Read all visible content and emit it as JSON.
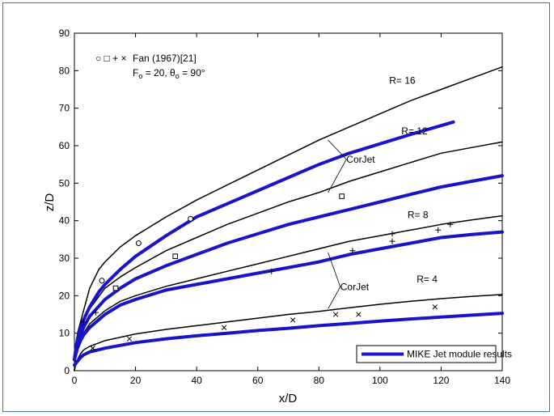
{
  "chart_data": {
    "type": "line",
    "title": "",
    "xlabel": "x/D",
    "ylabel": "z/D",
    "xlim": [
      0,
      140
    ],
    "ylim": [
      0,
      90
    ],
    "x_ticks": [
      0,
      20,
      40,
      60,
      80,
      100,
      120,
      140
    ],
    "y_ticks": [
      0,
      10,
      20,
      30,
      40,
      50,
      60,
      70,
      80,
      90
    ],
    "grid": false,
    "colors": {
      "corjet": "#000000",
      "mike": "#1a14c8",
      "markers": "#000000"
    },
    "legend": {
      "placement": "bottom-right",
      "label": "MIKE Jet module results"
    },
    "marker_legend": {
      "symbols": "○ □ + ×",
      "source": "Fan (1967)[21]",
      "params_prefix": "F",
      "params_sub1": "o",
      "params_mid": " = 20, θ",
      "params_sub2": "o",
      "params_suffix": " = 90°"
    },
    "r_labels": [
      {
        "text": "R= 16",
        "x": 103,
        "y": 76.5
      },
      {
        "text": "R= 12",
        "x": 107,
        "y": 63
      },
      {
        "text": "R= 8",
        "x": 109,
        "y": 40.7
      },
      {
        "text": "R= 4",
        "x": 112,
        "y": 23.5
      }
    ],
    "annotations": [
      {
        "text": "CorJet",
        "x": 89,
        "y": 55.5,
        "pointers": [
          [
            83,
            61.5
          ],
          [
            83,
            47.5
          ]
        ]
      },
      {
        "text": "CorJet",
        "x": 87,
        "y": 21.5,
        "pointers": [
          [
            83,
            31.5
          ],
          [
            83,
            16.5
          ]
        ]
      }
    ],
    "series": [
      {
        "group": "corjet",
        "R": 16,
        "points": [
          [
            0,
            0
          ],
          [
            0.5,
            6
          ],
          [
            1,
            10
          ],
          [
            2,
            13
          ],
          [
            3,
            16
          ],
          [
            4,
            19
          ],
          [
            5,
            22
          ],
          [
            8,
            27
          ],
          [
            10,
            29
          ],
          [
            15,
            33
          ],
          [
            20,
            36
          ],
          [
            30,
            41
          ],
          [
            40,
            45.5
          ],
          [
            50,
            49.5
          ],
          [
            60,
            53.5
          ],
          [
            70,
            57.5
          ],
          [
            80,
            61.5
          ],
          [
            90,
            65
          ],
          [
            100,
            68.5
          ],
          [
            110,
            72
          ],
          [
            120,
            75
          ],
          [
            130,
            78
          ],
          [
            140,
            81
          ]
        ]
      },
      {
        "group": "corjet",
        "R": 12,
        "points": [
          [
            0,
            0
          ],
          [
            0.5,
            5
          ],
          [
            1,
            8
          ],
          [
            2,
            11
          ],
          [
            3,
            13
          ],
          [
            5,
            16.5
          ],
          [
            10,
            22
          ],
          [
            15,
            25
          ],
          [
            20,
            27.5
          ],
          [
            30,
            32
          ],
          [
            40,
            35.5
          ],
          [
            50,
            39
          ],
          [
            60,
            42
          ],
          [
            70,
            45
          ],
          [
            80,
            47.5
          ],
          [
            90,
            50.5
          ],
          [
            100,
            53
          ],
          [
            110,
            55.5
          ],
          [
            120,
            58
          ],
          [
            130,
            59.5
          ],
          [
            140,
            61
          ]
        ]
      },
      {
        "group": "corjet",
        "R": 8,
        "points": [
          [
            0,
            0
          ],
          [
            0.5,
            4
          ],
          [
            1,
            6
          ],
          [
            2,
            8.5
          ],
          [
            3,
            10
          ],
          [
            5,
            12.5
          ],
          [
            10,
            16
          ],
          [
            15,
            18.5
          ],
          [
            20,
            20
          ],
          [
            30,
            22.5
          ],
          [
            40,
            24.5
          ],
          [
            50,
            26.5
          ],
          [
            60,
            28.5
          ],
          [
            70,
            30.5
          ],
          [
            80,
            32.5
          ],
          [
            90,
            34.5
          ],
          [
            100,
            36
          ],
          [
            110,
            37.5
          ],
          [
            120,
            39
          ],
          [
            130,
            40.2
          ],
          [
            140,
            41.3
          ]
        ]
      },
      {
        "group": "corjet",
        "R": 4,
        "points": [
          [
            0,
            0
          ],
          [
            0.5,
            2
          ],
          [
            1,
            3
          ],
          [
            2,
            4.5
          ],
          [
            3,
            5.5
          ],
          [
            5,
            6.5
          ],
          [
            10,
            8
          ],
          [
            20,
            9.8
          ],
          [
            30,
            11
          ],
          [
            40,
            12
          ],
          [
            50,
            13
          ],
          [
            60,
            14
          ],
          [
            70,
            15
          ],
          [
            80,
            15.8
          ],
          [
            90,
            16.8
          ],
          [
            100,
            17.7
          ],
          [
            110,
            18.5
          ],
          [
            120,
            19.2
          ],
          [
            130,
            19.8
          ],
          [
            140,
            20.3
          ]
        ]
      },
      {
        "group": "mike",
        "R": 16,
        "points": [
          [
            0,
            3
          ],
          [
            0.5,
            6
          ],
          [
            1,
            8.5
          ],
          [
            2,
            11.5
          ],
          [
            3,
            13.5
          ],
          [
            5,
            17
          ],
          [
            8,
            21
          ],
          [
            10,
            23
          ],
          [
            15,
            27
          ],
          [
            20,
            30.5
          ],
          [
            30,
            36
          ],
          [
            40,
            41
          ],
          [
            50,
            44.5
          ],
          [
            60,
            48
          ],
          [
            70,
            51.5
          ],
          [
            80,
            55
          ],
          [
            90,
            58
          ],
          [
            100,
            60.5
          ],
          [
            110,
            63
          ],
          [
            124,
            66.3
          ]
        ]
      },
      {
        "group": "mike",
        "R": 12,
        "points": [
          [
            0,
            3
          ],
          [
            0.5,
            5
          ],
          [
            1,
            7
          ],
          [
            2,
            9.5
          ],
          [
            3,
            11.5
          ],
          [
            5,
            14.5
          ],
          [
            10,
            19
          ],
          [
            15,
            22
          ],
          [
            20,
            24.5
          ],
          [
            30,
            28
          ],
          [
            40,
            31
          ],
          [
            50,
            34
          ],
          [
            60,
            36.5
          ],
          [
            70,
            39
          ],
          [
            80,
            41
          ],
          [
            90,
            43
          ],
          [
            100,
            45
          ],
          [
            110,
            47
          ],
          [
            120,
            49
          ],
          [
            130,
            50.5
          ],
          [
            140,
            52
          ]
        ]
      },
      {
        "group": "mike",
        "R": 8,
        "points": [
          [
            0,
            3
          ],
          [
            0.5,
            4.5
          ],
          [
            1,
            6
          ],
          [
            2,
            8
          ],
          [
            3,
            9.5
          ],
          [
            5,
            11.5
          ],
          [
            10,
            15
          ],
          [
            15,
            17.5
          ],
          [
            20,
            19
          ],
          [
            30,
            21.5
          ],
          [
            40,
            23
          ],
          [
            50,
            24.5
          ],
          [
            60,
            26
          ],
          [
            70,
            27.5
          ],
          [
            80,
            29
          ],
          [
            90,
            31
          ],
          [
            100,
            32.5
          ],
          [
            110,
            34
          ],
          [
            120,
            35.5
          ],
          [
            130,
            36.3
          ],
          [
            140,
            37
          ]
        ]
      },
      {
        "group": "mike",
        "R": 4,
        "points": [
          [
            0,
            1.5
          ],
          [
            1,
            2.5
          ],
          [
            2,
            3.5
          ],
          [
            3,
            4.2
          ],
          [
            5,
            5
          ],
          [
            10,
            6
          ],
          [
            20,
            7.5
          ],
          [
            30,
            8.5
          ],
          [
            40,
            9.3
          ],
          [
            50,
            10
          ],
          [
            60,
            10.7
          ],
          [
            70,
            11.3
          ],
          [
            80,
            12
          ],
          [
            90,
            12.6
          ],
          [
            100,
            13.2
          ],
          [
            110,
            13.8
          ],
          [
            120,
            14.3
          ],
          [
            130,
            14.8
          ],
          [
            140,
            15.3
          ]
        ]
      }
    ],
    "fan_points": {
      "circle": [
        [
          9,
          24
        ],
        [
          21,
          34
        ],
        [
          38,
          40.5
        ]
      ],
      "square": [
        [
          13.5,
          22
        ],
        [
          33,
          30.5
        ],
        [
          87.5,
          46.5
        ]
      ],
      "plus": [
        [
          3,
          13
        ],
        [
          7,
          15.5
        ],
        [
          64.5,
          26.5
        ],
        [
          91,
          32
        ],
        [
          104,
          34.5
        ],
        [
          104,
          36.5
        ],
        [
          119,
          37.5
        ],
        [
          123,
          39
        ]
      ],
      "cross": [
        [
          6,
          6
        ],
        [
          18,
          8.5
        ],
        [
          49,
          11.5
        ],
        [
          71.5,
          13.5
        ],
        [
          85.5,
          15
        ],
        [
          93,
          15
        ],
        [
          118,
          17
        ]
      ]
    }
  }
}
